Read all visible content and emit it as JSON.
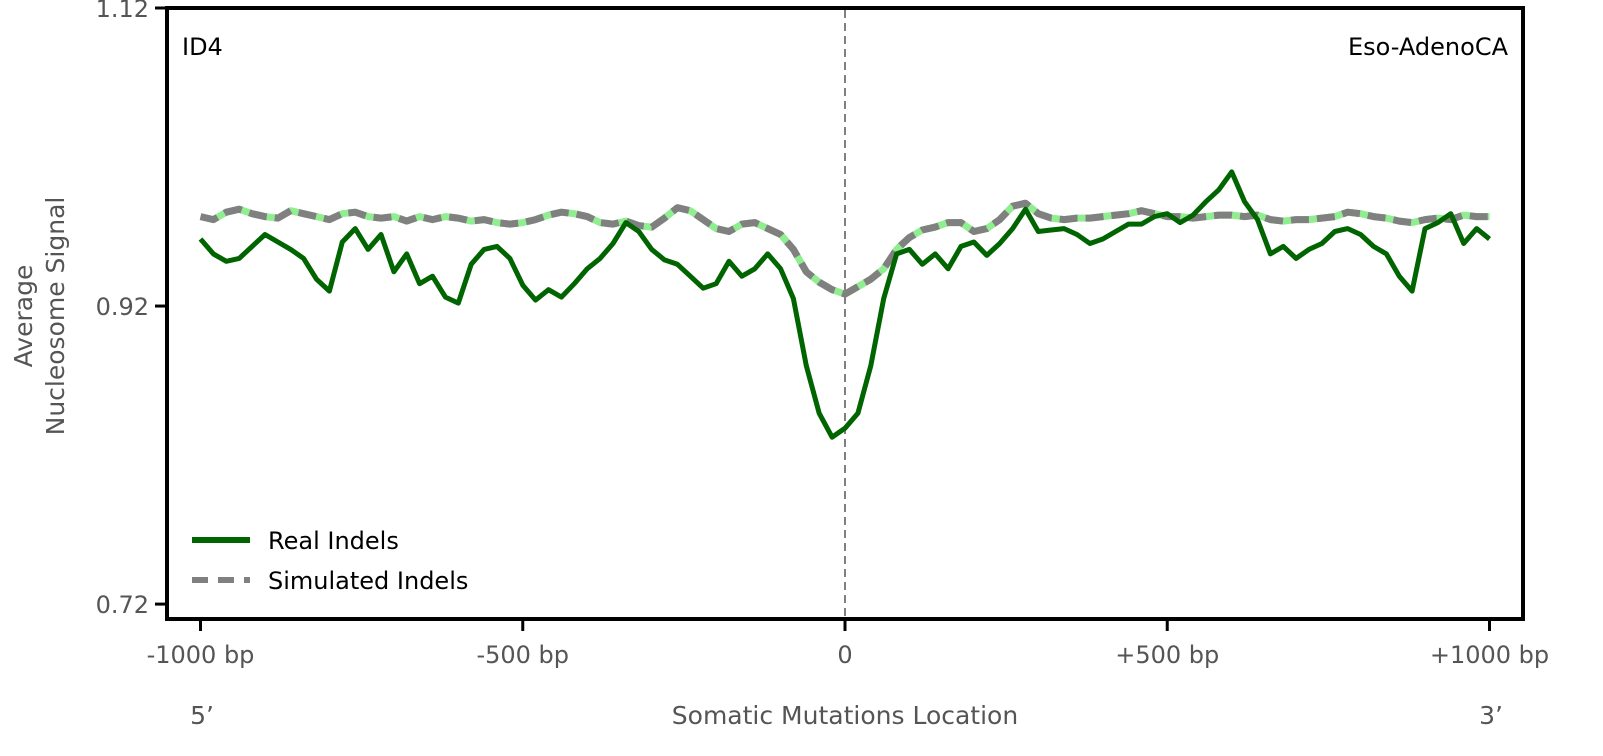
{
  "chart_data": {
    "type": "line",
    "panel_label": "ID4",
    "cancer_type": "Eso-AdenoCA",
    "ylabel_lines": [
      "Average",
      "Nucleosome Signal"
    ],
    "xlabel": "Somatic Mutations Location",
    "x_end_labels": {
      "left": "5’",
      "right": "3’"
    },
    "x_ticks": [
      {
        "value": -1000,
        "label": "-1000 bp"
      },
      {
        "value": -500,
        "label": "-500 bp"
      },
      {
        "value": 0,
        "label": "0"
      },
      {
        "value": 500,
        "label": "+500 bp"
      },
      {
        "value": 1000,
        "label": "+1000 bp"
      }
    ],
    "y_ticks": [
      {
        "value": 0.72,
        "label": "0.72"
      },
      {
        "value": 0.92,
        "label": "0.92"
      },
      {
        "value": 1.12,
        "label": "1.12"
      }
    ],
    "xlim": [
      -1052,
      1052
    ],
    "ylim": [
      0.71,
      1.12
    ],
    "vline_x": 0,
    "legend": {
      "placement": "lower-left"
    },
    "colors": {
      "real": "#006400",
      "sim_dash": "#808080",
      "sim_under": "#90ee90",
      "axis": "#000000",
      "vline": "#808080"
    },
    "series": [
      {
        "name": "Real Indels",
        "style": "solid",
        "x": [
          -1000,
          -980,
          -960,
          -940,
          -920,
          -900,
          -880,
          -860,
          -840,
          -820,
          -800,
          -780,
          -760,
          -740,
          -720,
          -700,
          -680,
          -660,
          -640,
          -620,
          -600,
          -580,
          -560,
          -540,
          -520,
          -500,
          -480,
          -460,
          -440,
          -420,
          -400,
          -380,
          -360,
          -340,
          -320,
          -300,
          -280,
          -260,
          -240,
          -220,
          -200,
          -180,
          -160,
          -140,
          -120,
          -100,
          -80,
          -60,
          -40,
          -20,
          0,
          20,
          40,
          60,
          80,
          100,
          120,
          140,
          160,
          180,
          200,
          220,
          240,
          260,
          280,
          300,
          320,
          340,
          360,
          380,
          400,
          420,
          440,
          460,
          480,
          500,
          520,
          540,
          560,
          580,
          600,
          620,
          640,
          660,
          680,
          700,
          720,
          740,
          760,
          780,
          800,
          820,
          840,
          860,
          880,
          900,
          920,
          940,
          960,
          980,
          1000
        ],
        "y": [
          0.965,
          0.955,
          0.95,
          0.952,
          0.96,
          0.968,
          0.963,
          0.958,
          0.952,
          0.938,
          0.93,
          0.963,
          0.972,
          0.958,
          0.968,
          0.943,
          0.955,
          0.935,
          0.94,
          0.926,
          0.922,
          0.948,
          0.958,
          0.96,
          0.952,
          0.934,
          0.924,
          0.931,
          0.926,
          0.935,
          0.945,
          0.952,
          0.962,
          0.976,
          0.97,
          0.958,
          0.951,
          0.948,
          0.94,
          0.932,
          0.935,
          0.95,
          0.94,
          0.945,
          0.955,
          0.945,
          0.925,
          0.88,
          0.848,
          0.832,
          0.838,
          0.848,
          0.88,
          0.925,
          0.955,
          0.958,
          0.948,
          0.955,
          0.945,
          0.96,
          0.963,
          0.954,
          0.962,
          0.972,
          0.985,
          0.97,
          0.971,
          0.972,
          0.968,
          0.962,
          0.965,
          0.97,
          0.975,
          0.975,
          0.98,
          0.982,
          0.976,
          0.981,
          0.99,
          0.998,
          1.01,
          0.99,
          0.978,
          0.955,
          0.96,
          0.952,
          0.958,
          0.962,
          0.97,
          0.972,
          0.968,
          0.96,
          0.955,
          0.94,
          0.93,
          0.972,
          0.976,
          0.982,
          0.962,
          0.972,
          0.965
        ]
      },
      {
        "name": "Simulated Indels",
        "style": "dashed",
        "x": [
          -1000,
          -980,
          -960,
          -940,
          -920,
          -900,
          -880,
          -860,
          -840,
          -820,
          -800,
          -780,
          -760,
          -740,
          -720,
          -700,
          -680,
          -660,
          -640,
          -620,
          -600,
          -580,
          -560,
          -540,
          -520,
          -500,
          -480,
          -460,
          -440,
          -420,
          -400,
          -380,
          -360,
          -340,
          -320,
          -300,
          -280,
          -260,
          -240,
          -220,
          -200,
          -180,
          -160,
          -140,
          -120,
          -100,
          -80,
          -60,
          -40,
          -20,
          0,
          20,
          40,
          60,
          80,
          100,
          120,
          140,
          160,
          180,
          200,
          220,
          240,
          260,
          280,
          300,
          320,
          340,
          360,
          380,
          400,
          420,
          440,
          460,
          480,
          500,
          520,
          540,
          560,
          580,
          600,
          620,
          640,
          660,
          680,
          700,
          720,
          740,
          760,
          780,
          800,
          820,
          840,
          860,
          880,
          900,
          920,
          940,
          960,
          980,
          1000
        ],
        "y": [
          0.98,
          0.978,
          0.983,
          0.985,
          0.982,
          0.98,
          0.979,
          0.984,
          0.982,
          0.98,
          0.978,
          0.982,
          0.983,
          0.98,
          0.979,
          0.98,
          0.977,
          0.98,
          0.978,
          0.98,
          0.979,
          0.977,
          0.978,
          0.976,
          0.975,
          0.976,
          0.978,
          0.981,
          0.983,
          0.982,
          0.98,
          0.976,
          0.975,
          0.977,
          0.974,
          0.973,
          0.979,
          0.986,
          0.984,
          0.978,
          0.972,
          0.97,
          0.975,
          0.976,
          0.972,
          0.968,
          0.958,
          0.943,
          0.936,
          0.931,
          0.928,
          0.933,
          0.938,
          0.945,
          0.958,
          0.966,
          0.971,
          0.973,
          0.976,
          0.976,
          0.97,
          0.972,
          0.978,
          0.987,
          0.989,
          0.982,
          0.979,
          0.978,
          0.979,
          0.979,
          0.98,
          0.981,
          0.982,
          0.984,
          0.982,
          0.98,
          0.98,
          0.979,
          0.98,
          0.981,
          0.981,
          0.98,
          0.981,
          0.978,
          0.977,
          0.978,
          0.978,
          0.979,
          0.98,
          0.983,
          0.982,
          0.98,
          0.979,
          0.977,
          0.976,
          0.978,
          0.979,
          0.978,
          0.981,
          0.98,
          0.98
        ]
      }
    ]
  }
}
